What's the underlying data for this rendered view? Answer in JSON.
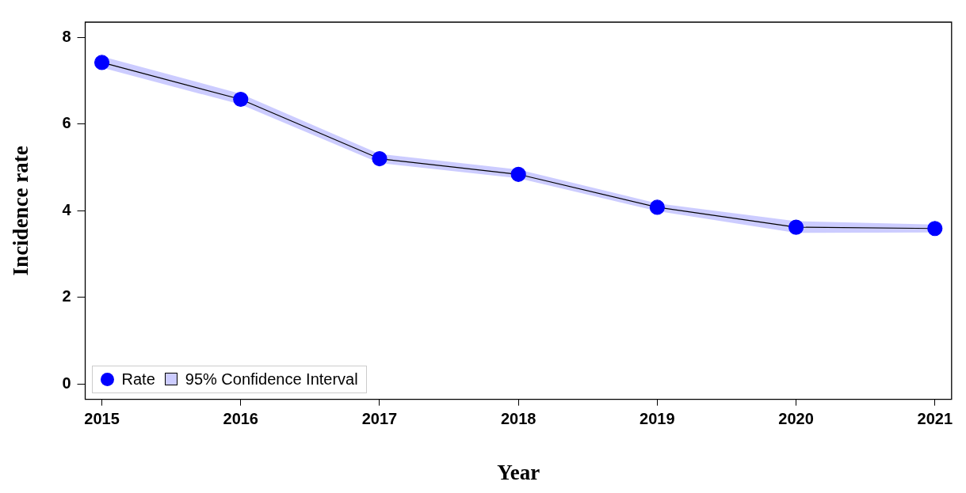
{
  "chart_data": {
    "type": "line",
    "xlabel": "Year",
    "ylabel": "Incidence rate",
    "annotations": [
      "95% Confidence Interval"
    ],
    "x": [
      2015,
      2016,
      2017,
      2018,
      2019,
      2020,
      2021
    ],
    "series": [
      {
        "name": "Rate",
        "color": "#0000ff",
        "values": [
          7.42,
          6.57,
          5.2,
          4.84,
          4.08,
          3.62,
          3.59
        ],
        "lower": [
          7.3,
          6.45,
          5.1,
          4.75,
          3.99,
          3.49,
          3.5
        ],
        "upper": [
          7.56,
          6.7,
          5.31,
          4.95,
          4.17,
          3.76,
          3.68
        ]
      }
    ],
    "xlim": [
      2014.88,
      2021.12
    ],
    "xticks": [
      2015,
      2016,
      2017,
      2018,
      2019,
      2020,
      2021
    ],
    "ylim": [
      -0.35,
      8.35
    ],
    "yticks": [
      0,
      2,
      4,
      6,
      8
    ],
    "grid": false,
    "legend": "bottom left",
    "marker": "circle",
    "line_style": "solid"
  }
}
